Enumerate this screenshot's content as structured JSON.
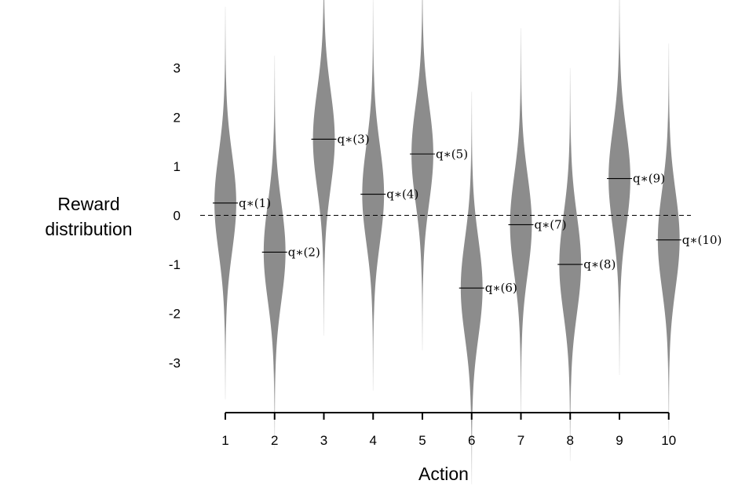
{
  "chart_data": {
    "type": "violin",
    "ylabel_lines": [
      "Reward",
      "distribution"
    ],
    "xlabel": "Action",
    "categories": [
      "1",
      "2",
      "3",
      "4",
      "5",
      "6",
      "7",
      "8",
      "9",
      "10"
    ],
    "yticks": [
      "3",
      "2",
      "1",
      "0",
      "-1",
      "-2",
      "-3"
    ],
    "ylim": [
      -4,
      4
    ],
    "means": [
      0.25,
      -0.75,
      1.55,
      0.43,
      1.25,
      -1.48,
      -0.19,
      -1.0,
      0.75,
      -0.5
    ],
    "spread_sd": 1.0,
    "mean_labels": [
      "q∗(1)",
      "q∗(2)",
      "q∗(3)",
      "q∗(4)",
      "q∗(5)",
      "q∗(6)",
      "q∗(7)",
      "q∗(8)",
      "q∗(9)",
      "q∗(10)"
    ],
    "reference_line": 0,
    "reference_line_style": "dashed",
    "violin_color": "#8c8c8c"
  }
}
